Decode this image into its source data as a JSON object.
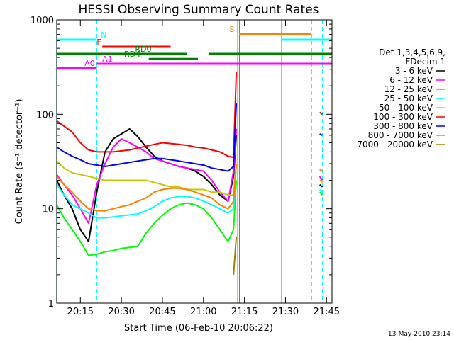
{
  "chart_data": {
    "type": "line",
    "title": "HESSI Observing Summary Count Rates",
    "xlabel": "Start Time (06-Feb-10 20:06:22)",
    "ylabel": "Count Rate (s⁻¹ detector⁻¹)",
    "xlim": [
      "20:06:22",
      "21:47:00"
    ],
    "ylim": [
      1,
      1000
    ],
    "yscale": "log",
    "x_ticks": [
      "20:15",
      "20:30",
      "20:45",
      "21:00",
      "21:15",
      "21:30",
      "21:45"
    ],
    "y_ticks": [
      "1",
      "10",
      "100",
      "1000"
    ],
    "grid": false,
    "legend": {
      "placement": "right",
      "header": [
        "Det 1,3,4,5,6,9,",
        "FDecim 1"
      ]
    },
    "x": [
      "20:06:22",
      "20:09",
      "20:12",
      "20:15",
      "20:18",
      "20:21",
      "20:24",
      "20:27",
      "20:30",
      "20:33",
      "20:36",
      "20:39",
      "20:42",
      "20:45",
      "20:48",
      "20:51",
      "20:54",
      "20:57",
      "21:00",
      "21:03",
      "21:06",
      "21:09",
      "21:11",
      "21:12"
    ],
    "series": [
      {
        "name": "3 - 6 keV",
        "color": "#000000",
        "values": [
          20,
          14,
          10,
          6,
          4.5,
          15,
          40,
          55,
          62,
          70,
          58,
          45,
          36,
          32,
          30,
          28,
          27,
          25,
          22,
          18,
          14,
          12,
          22,
          60
        ]
      },
      {
        "name": "6 - 12 keV",
        "color": "#ff00ff",
        "values": [
          23,
          18,
          14,
          10,
          7,
          18,
          30,
          45,
          55,
          50,
          45,
          40,
          34,
          32,
          30,
          28,
          27,
          26,
          25,
          20,
          15,
          12,
          25,
          70
        ]
      },
      {
        "name": "12 - 25 keV",
        "color": "#00ff00",
        "values": [
          11,
          8,
          6,
          4.5,
          3.2,
          3.3,
          3.5,
          3.6,
          3.8,
          3.9,
          4,
          5.5,
          7,
          8.5,
          10,
          11,
          11.5,
          11,
          10,
          8,
          6,
          4.5,
          6,
          20
        ]
      },
      {
        "name": "25 - 50 keV",
        "color": "#00ffff",
        "values": [
          18,
          14,
          11,
          10,
          9,
          8,
          8,
          8.2,
          8.4,
          8.6,
          8.8,
          9.5,
          10.5,
          12,
          13,
          13.5,
          13.5,
          13,
          12,
          11,
          10,
          9,
          10,
          30
        ]
      },
      {
        "name": "50 - 100 keV",
        "color": "#c8c800",
        "values": [
          32,
          27,
          24,
          23,
          22,
          21,
          20,
          20,
          20,
          20,
          20,
          20,
          19,
          18,
          17,
          17,
          16,
          16,
          16,
          15,
          15,
          14,
          14,
          30
        ]
      },
      {
        "name": "100 - 300 keV",
        "color": "#ff0000",
        "values": [
          85,
          75,
          65,
          50,
          42,
          40,
          40,
          40,
          41,
          42,
          44,
          46,
          48,
          50,
          49,
          48,
          47,
          45,
          44,
          42,
          40,
          36,
          35,
          280
        ]
      },
      {
        "name": "300 - 800 keV",
        "color": "#0000ff",
        "values": [
          45,
          40,
          36,
          33,
          30,
          29,
          28,
          29,
          30,
          31,
          32,
          33,
          34,
          34,
          33,
          32,
          31,
          30,
          29,
          27,
          26,
          25,
          28,
          130
        ]
      },
      {
        "name": "800 - 7000 keV",
        "color": "#ff8000",
        "values": [
          22,
          18,
          15,
          12,
          10,
          9.5,
          9.5,
          10,
          10.5,
          11,
          12,
          13,
          15,
          16,
          16.5,
          16.5,
          16,
          15,
          14,
          13,
          11,
          10,
          12,
          30
        ]
      },
      {
        "name": "7000 - 20000 keV",
        "color": "#a08000",
        "values": [
          null,
          null,
          null,
          null,
          null,
          null,
          null,
          null,
          null,
          null,
          null,
          null,
          null,
          null,
          null,
          null,
          null,
          null,
          null,
          null,
          null,
          null,
          2,
          5
        ]
      }
    ],
    "end_segment": {
      "x": [
        "21:42:30",
        "21:43:30"
      ],
      "values": {
        "100 - 300 keV": [
          105,
          100
        ],
        "300 - 800 keV": [
          62,
          60
        ],
        "6 - 12 keV": [
          22,
          20
        ],
        "12 - 25 keV": [
          15,
          14
        ],
        "25 - 50 keV": [
          16,
          15
        ],
        "50 - 100 keV": [
          20,
          19
        ],
        "800 - 7000 keV": [
          26,
          25
        ],
        "3 - 6 keV": [
          18,
          17
        ]
      }
    },
    "vertical_lines": [
      {
        "x": "20:06:22",
        "color": "#00ffff",
        "style": "solid"
      },
      {
        "x": "20:21:00",
        "color": "#00ffff",
        "style": "dashed"
      },
      {
        "x": "21:12:30",
        "color": "#ff8000",
        "style": "solid"
      },
      {
        "x": "21:13:10",
        "color": "#a08000",
        "style": "solid"
      },
      {
        "x": "21:28:30",
        "color": "#00ffff",
        "style": "solid"
      },
      {
        "x": "21:39:30",
        "color": "#ff8000",
        "style": "dashed"
      },
      {
        "x": "21:43:30",
        "color": "#00ffff",
        "style": "dashed"
      }
    ],
    "state_bars": [
      {
        "label": "N",
        "color": "#00ffff",
        "segments": [
          [
            "20:06:22",
            "20:21:00"
          ],
          [
            "21:28:30",
            "21:47:00"
          ]
        ],
        "level": 0.93,
        "label_at": "20:22:30"
      },
      {
        "label": "S",
        "color": "#ff8000",
        "segments": [
          [
            "21:13:00",
            "21:39:30"
          ]
        ],
        "level": 0.95,
        "label_at": "21:09:30"
      },
      {
        "label": "F",
        "color": "#ff0000",
        "segments": [
          [
            "20:23:00",
            "20:48:00"
          ]
        ],
        "level": 0.905,
        "label_at": "20:21:00"
      },
      {
        "label": "RD0",
        "color": "#008000",
        "segments": [
          [
            "20:06:22",
            "20:54:00"
          ],
          [
            "21:02:00",
            "21:47:00"
          ]
        ],
        "level": 0.88,
        "label_at": "20:35:00"
      },
      {
        "label": "RD4",
        "color": "#008000",
        "segments": [
          [
            "20:40:00",
            "20:58:00"
          ]
        ],
        "level": 0.862,
        "label_at": "20:31:00"
      },
      {
        "label": "A1",
        "color": "#ff00ff",
        "segments": [
          [
            "20:21:00",
            "21:47:00"
          ]
        ],
        "level": 0.845,
        "label_at": "20:23:00"
      },
      {
        "label": "A0",
        "color": "#ff00ff",
        "segments": [
          [
            "20:06:22",
            "20:21:00"
          ]
        ],
        "level": 0.83,
        "label_at": "20:16:30"
      }
    ]
  },
  "footer_date": "13-May-2010 23:14"
}
